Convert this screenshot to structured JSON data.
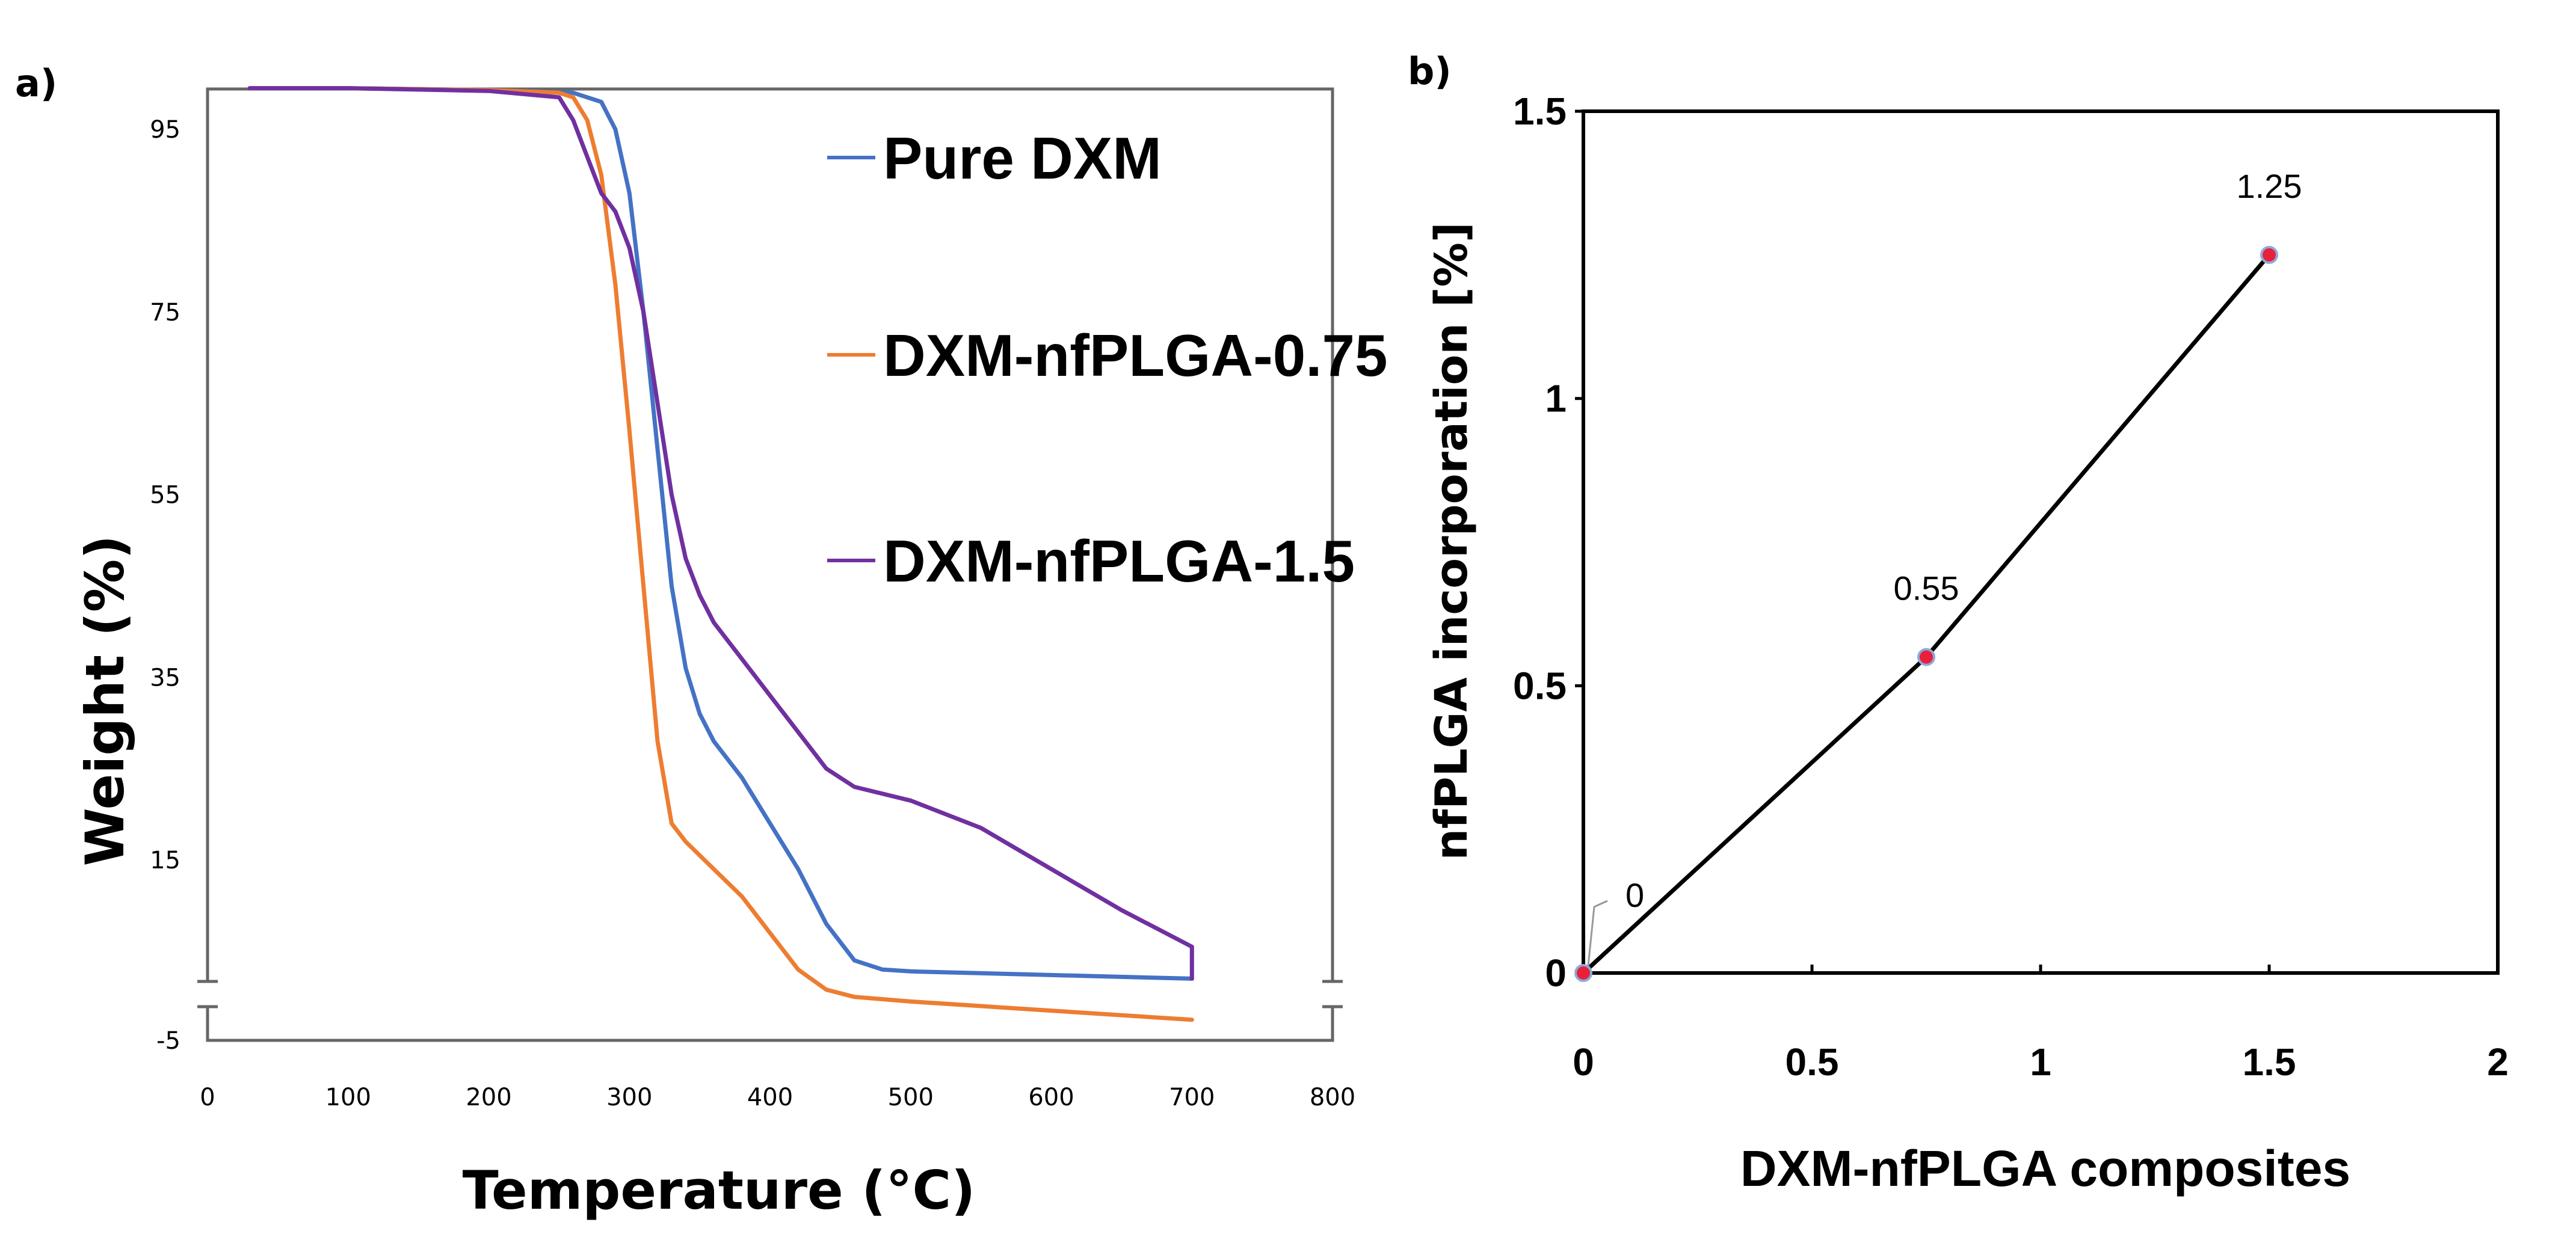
{
  "chart_data": [
    {
      "panel": "a)",
      "type": "line",
      "title": "",
      "xlabel": "Temperature (°C)",
      "ylabel": "Weight (%)",
      "xlim": [
        0,
        800
      ],
      "ylim": [
        -5,
        100
      ],
      "y_axis_break": true,
      "xticks": [
        0,
        100,
        200,
        300,
        400,
        500,
        600,
        700,
        800
      ],
      "yticks": [
        -5,
        15,
        35,
        55,
        75,
        95
      ],
      "legend_position": "top-right",
      "series": [
        {
          "name": "Pure DXM",
          "color": "#4472C4",
          "x": [
            30,
            100,
            200,
            260,
            280,
            290,
            300,
            310,
            320,
            330,
            340,
            350,
            360,
            380,
            400,
            420,
            440,
            460,
            480,
            500,
            600,
            700
          ],
          "y": [
            99.5,
            99.5,
            99.3,
            99.0,
            98.0,
            95.0,
            88.0,
            75.0,
            60.0,
            45.0,
            36.0,
            31.0,
            28.0,
            24.0,
            19.0,
            14.0,
            8.0,
            4.0,
            3.0,
            2.8,
            2.4,
            2.0
          ]
        },
        {
          "name": "DXM-nfPLGA-0.75",
          "color": "#ED7D31",
          "x": [
            30,
            100,
            200,
            250,
            260,
            270,
            280,
            290,
            300,
            310,
            320,
            330,
            340,
            360,
            380,
            400,
            420,
            440,
            460,
            500,
            600,
            700
          ],
          "y": [
            99.5,
            99.5,
            99.3,
            99.0,
            98.5,
            96.0,
            90.0,
            78.0,
            62.0,
            45.0,
            28.0,
            19.0,
            17.0,
            14.0,
            11.0,
            7.0,
            3.0,
            0.8,
            0.0,
            -0.5,
            -1.5,
            -2.5
          ]
        },
        {
          "name": "DXM-nfPLGA-1.5",
          "color": "#7030A0",
          "x": [
            30,
            100,
            200,
            250,
            260,
            270,
            280,
            290,
            300,
            310,
            320,
            330,
            340,
            350,
            360,
            380,
            400,
            420,
            440,
            460,
            500,
            550,
            600,
            650,
            700,
            700
          ],
          "y": [
            99.5,
            99.5,
            99.2,
            98.5,
            96.0,
            92.0,
            88.0,
            86.0,
            82.0,
            75.0,
            65.0,
            55.0,
            48.0,
            44.0,
            41.0,
            37.0,
            33.0,
            29.0,
            25.0,
            23.0,
            21.5,
            18.5,
            14.0,
            9.5,
            5.5,
            2.0
          ]
        }
      ]
    },
    {
      "panel": "b)",
      "type": "line",
      "title": "",
      "xlabel": "DXM-nfPLGA composites",
      "ylabel": "nfPLGA incorporation [%]",
      "xlim": [
        0,
        2
      ],
      "ylim": [
        0,
        1.5
      ],
      "xticks": [
        0,
        0.5,
        1,
        1.5,
        2
      ],
      "yticks": [
        0,
        0.5,
        1,
        1.5
      ],
      "xtick_labels": [
        "0",
        "0.5",
        "1",
        "1.5",
        "2"
      ],
      "ytick_labels": [
        "0",
        "0.5",
        "1",
        "1.5"
      ],
      "series": [
        {
          "name": "nfPLGA incorporation",
          "color": "#000000",
          "marker_color": "#E8203A",
          "x": [
            0,
            0.75,
            1.5
          ],
          "y": [
            0,
            0.55,
            1.25
          ],
          "labels": [
            "0",
            "0.55",
            "1.25"
          ]
        }
      ]
    }
  ]
}
